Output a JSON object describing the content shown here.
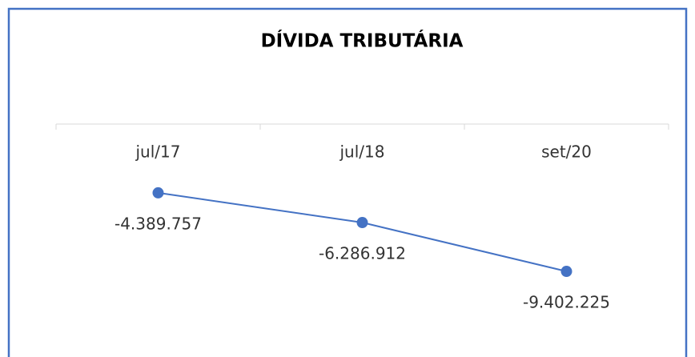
{
  "chart_data": {
    "type": "line",
    "title": "DÍVIDA TRIBUTÁRIA",
    "categories": [
      "jul/17",
      "jul/18",
      "set/20"
    ],
    "series": [
      {
        "name": null,
        "color": "#4472c4",
        "values": [
          -4389757,
          -6286912,
          -9402225
        ],
        "value_labels": [
          "-4.389.757",
          "-6.286.912",
          "-9.402.225"
        ]
      }
    ],
    "ylim": [
      -14000000,
      0
    ]
  }
}
